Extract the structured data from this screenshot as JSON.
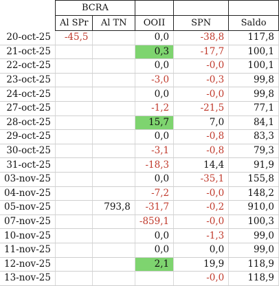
{
  "header": {
    "group_label": "BCRA",
    "columns": [
      "Al SPr",
      "Al TN",
      "OOII",
      "SPN",
      "Saldo"
    ]
  },
  "colors": {
    "negative": "#c0392b",
    "highlight": "#7ed46f"
  },
  "rows": [
    {
      "date": "20-oct-25",
      "al_spr": "-45,5",
      "al_tn": "",
      "ooii": "0,0",
      "spn": "-38,8",
      "saldo": "117,8"
    },
    {
      "date": "21-oct-25",
      "al_spr": "",
      "al_tn": "",
      "ooii": "0,3",
      "spn": "-17,7",
      "saldo": "100,1"
    },
    {
      "date": "22-oct-25",
      "al_spr": "",
      "al_tn": "",
      "ooii": "0,0",
      "spn": "-0,0",
      "saldo": "100,1"
    },
    {
      "date": "23-oct-25",
      "al_spr": "",
      "al_tn": "",
      "ooii": "-3,0",
      "spn": "-0,3",
      "saldo": "99,8"
    },
    {
      "date": "24-oct-25",
      "al_spr": "",
      "al_tn": "",
      "ooii": "0,0",
      "spn": "-0,0",
      "saldo": "99,8"
    },
    {
      "date": "27-oct-25",
      "al_spr": "",
      "al_tn": "",
      "ooii": "-1,2",
      "spn": "-21,5",
      "saldo": "77,1"
    },
    {
      "date": "28-oct-25",
      "al_spr": "",
      "al_tn": "",
      "ooii": "15,7",
      "spn": "7,0",
      "saldo": "84,1"
    },
    {
      "date": "29-oct-25",
      "al_spr": "",
      "al_tn": "",
      "ooii": "0,0",
      "spn": "-0,8",
      "saldo": "83,3"
    },
    {
      "date": "30-oct-25",
      "al_spr": "",
      "al_tn": "",
      "ooii": "-3,1",
      "spn": "-0,8",
      "saldo": "79,3"
    },
    {
      "date": "31-oct-25",
      "al_spr": "",
      "al_tn": "",
      "ooii": "-18,3",
      "spn": "14,4",
      "saldo": "91,9"
    },
    {
      "date": "03-nov-25",
      "al_spr": "",
      "al_tn": "",
      "ooii": "0,0",
      "spn": "-35,1",
      "saldo": "155,8"
    },
    {
      "date": "04-nov-25",
      "al_spr": "",
      "al_tn": "",
      "ooii": "-7,2",
      "spn": "-0,0",
      "saldo": "148,2"
    },
    {
      "date": "05-nov-25",
      "al_spr": "",
      "al_tn": "793,8",
      "ooii": "-31,7",
      "spn": "-0,2",
      "saldo": "910,0"
    },
    {
      "date": "07-nov-25",
      "al_spr": "",
      "al_tn": "",
      "ooii": "-859,1",
      "spn": "-0,0",
      "saldo": "100,3"
    },
    {
      "date": "10-nov-25",
      "al_spr": "",
      "al_tn": "",
      "ooii": "0,0",
      "spn": "-1,3",
      "saldo": "99,0"
    },
    {
      "date": "11-nov-25",
      "al_spr": "",
      "al_tn": "",
      "ooii": "0,0",
      "spn": "0,0",
      "saldo": "99,0"
    },
    {
      "date": "12-nov-25",
      "al_spr": "",
      "al_tn": "",
      "ooii": "2,1",
      "spn": "19,9",
      "saldo": "118,9"
    },
    {
      "date": "13-nov-25",
      "al_spr": "",
      "al_tn": "",
      "ooii": "",
      "spn": "-0,0",
      "saldo": "118,9"
    }
  ],
  "highlighted_ooii_rows": [
    "21-oct-25",
    "28-oct-25",
    "12-nov-25"
  ]
}
